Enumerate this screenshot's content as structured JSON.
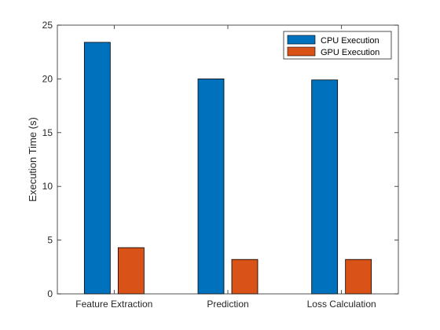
{
  "chart_data": {
    "type": "bar",
    "title": "",
    "xlabel": "",
    "ylabel": "Execution Time (s)",
    "categories": [
      "Feature Extraction",
      "Prediction",
      "Loss Calculation"
    ],
    "series": [
      {
        "name": "CPU Execution",
        "values": [
          23.4,
          20.0,
          19.9
        ],
        "color": "#0072BD"
      },
      {
        "name": "GPU Execution",
        "values": [
          4.3,
          3.2,
          3.2
        ],
        "color": "#D95319"
      }
    ],
    "ylim": [
      0,
      25
    ],
    "yticks": [
      0,
      5,
      10,
      15,
      20,
      25
    ],
    "grid": false,
    "legend_position": "top-right"
  }
}
